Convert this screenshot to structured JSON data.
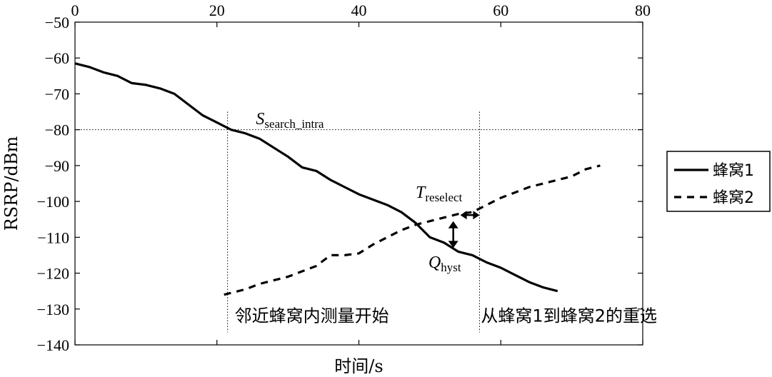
{
  "chart_data": {
    "type": "line",
    "xlabel": "时间/s",
    "ylabel": "RSRP/dBm",
    "xlim": [
      0,
      80
    ],
    "ylim": [
      -140,
      -50
    ],
    "x_ticks": [
      0,
      20,
      40,
      60,
      80
    ],
    "y_ticks": [
      -50,
      -60,
      -70,
      -80,
      -90,
      -100,
      -110,
      -120,
      -130,
      -140
    ],
    "x_tick_position": "top",
    "grid": false,
    "legend": "right",
    "series": [
      {
        "name": "蜂窝1",
        "style": "solid",
        "color": "#000000",
        "x": [
          0,
          2,
          4,
          6,
          8,
          10,
          12,
          14,
          16,
          18,
          20,
          22,
          24,
          26,
          28,
          30,
          32,
          34,
          36,
          38,
          40,
          42,
          44,
          46,
          48,
          50,
          52,
          54,
          56,
          58,
          60,
          62,
          64,
          66,
          68
        ],
        "y": [
          -61.5,
          -62.5,
          -64,
          -65,
          -67,
          -67.5,
          -68.5,
          -70,
          -73,
          -76,
          -78,
          -80,
          -81,
          -82.5,
          -85,
          -87.5,
          -90.5,
          -91.5,
          -94,
          -96,
          -98,
          -99.5,
          -101,
          -103,
          -106,
          -110,
          -111.5,
          -114,
          -115,
          -117,
          -118.5,
          -120.5,
          -122.5,
          -124,
          -125
        ]
      },
      {
        "name": "蜂窝2",
        "style": "dashed",
        "color": "#000000",
        "x": [
          21,
          24,
          26,
          28,
          30,
          32,
          34,
          36,
          38,
          40,
          42,
          44,
          46,
          48,
          50,
          52,
          54,
          56,
          58,
          60,
          62,
          64,
          66,
          68,
          70,
          72,
          74
        ],
        "y": [
          -126,
          -124.5,
          -123,
          -122,
          -121,
          -119.5,
          -118,
          -115,
          -115,
          -114.5,
          -112,
          -110,
          -108,
          -106.5,
          -105.5,
          -104.5,
          -103.5,
          -103,
          -101,
          -99,
          -97.5,
          -96,
          -95,
          -94,
          -93,
          -91,
          -90
        ]
      }
    ],
    "reference_lines": [
      {
        "orientation": "horizontal",
        "value": -80,
        "style": "dotted"
      },
      {
        "orientation": "vertical",
        "value": 21.5,
        "style": "dotted"
      },
      {
        "orientation": "vertical",
        "value": 57,
        "style": "dotted"
      }
    ],
    "annotations": [
      {
        "id": "s_search",
        "main": "S",
        "sub": "search_intra",
        "x": 25.5,
        "y": -78.5
      },
      {
        "id": "t_reselect",
        "main": "T",
        "sub": "reselect",
        "x": 48,
        "y": -99
      },
      {
        "id": "q_hyst",
        "main": "Q",
        "sub": "hyst",
        "x": 49.8,
        "y": -118.5
      },
      {
        "id": "start_text",
        "text": "邻近蜂窝内测量开始",
        "x": 22.5,
        "y": -133.5
      },
      {
        "id": "reselect_text",
        "text": "从蜂窝1到蜂窝2的重选",
        "x": 57.2,
        "y": -133.5
      }
    ],
    "arrows": [
      {
        "id": "q_hyst_arrow",
        "orientation": "vertical",
        "x": 53.3,
        "from": -105.5,
        "to": -113
      },
      {
        "id": "t_reselect_arrow",
        "orientation": "horizontal",
        "y": -103.8,
        "from": 54.3,
        "to": 57
      }
    ]
  }
}
